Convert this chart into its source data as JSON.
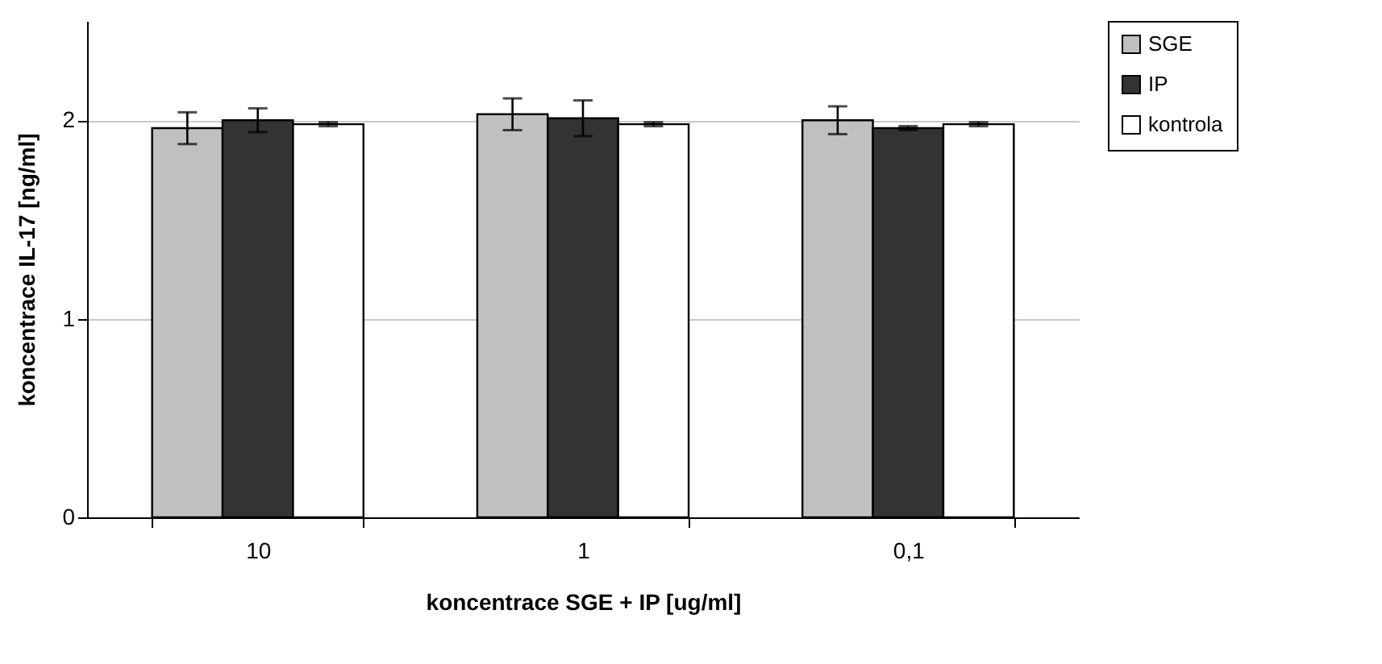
{
  "chart_data": {
    "type": "bar",
    "xlabel": "koncentrace SGE + IP [ug/ml]",
    "ylabel": "koncentrace IL-17 [ng/ml]",
    "categories": [
      "10",
      "1",
      "0,1"
    ],
    "series": [
      {
        "name": "SGE",
        "color": "#c0c0c0",
        "values": [
          1.96,
          2.03,
          2.0
        ],
        "errors": [
          0.08,
          0.08,
          0.07
        ]
      },
      {
        "name": "IP",
        "color": "#333333",
        "values": [
          2.0,
          2.01,
          1.96
        ],
        "errors": [
          0.06,
          0.09,
          0.01
        ]
      },
      {
        "name": "kontrola",
        "color": "#ffffff",
        "values": [
          1.98,
          1.98,
          1.98
        ],
        "errors": [
          0.01,
          0.01,
          0.01
        ]
      }
    ],
    "ylim": [
      0,
      2.5
    ],
    "yticks": [
      0,
      1,
      2
    ],
    "grid": "y",
    "legend": "right"
  }
}
